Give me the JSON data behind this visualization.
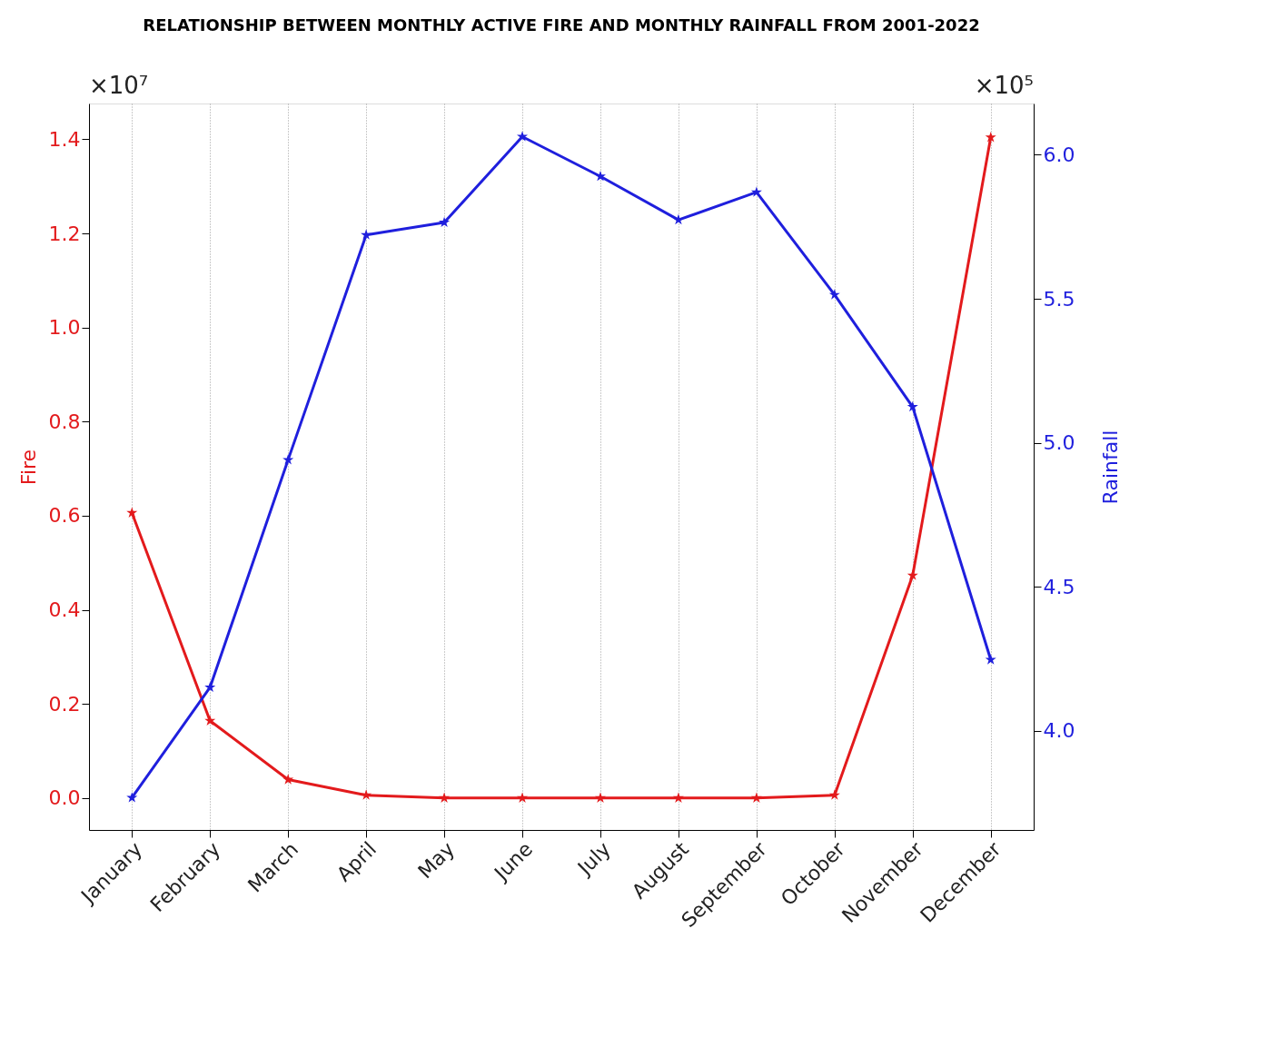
{
  "chart_data": {
    "type": "line",
    "title": "RELATIONSHIP BETWEEN MONTHLY ACTIVE FIRE AND MONTHLY RAINFALL FROM 2001-2022",
    "categories": [
      "January",
      "February",
      "March",
      "April",
      "May",
      "June",
      "July",
      "August",
      "September",
      "October",
      "November",
      "December"
    ],
    "series": [
      {
        "color": "#e31a1c",
        "values": [
          0.606,
          0.164,
          0.039,
          0.006,
          0.0,
          0.0,
          0.0,
          0.0,
          0.0,
          0.006,
          0.473,
          1.404
        ]
      },
      {
        "color": "#1f1fdd",
        "axis": "y2",
        "values": [
          3.768,
          4.151,
          4.941,
          5.722,
          5.765,
          6.063,
          5.925,
          5.774,
          5.87,
          5.514,
          5.125,
          4.247
        ]
      }
    ],
    "ylabel": "Fire",
    "y2label": "Rainfall",
    "ylim": [
      -0.068,
      1.476
    ],
    "yticks": [
      {
        "value": 0,
        "label": "0.0"
      },
      {
        "value": 0.2,
        "label": "0.2"
      },
      {
        "value": 0.4,
        "label": "0.4"
      },
      {
        "value": 0.6,
        "label": "0.6"
      },
      {
        "value": 0.8,
        "label": "0.8"
      },
      {
        "value": 1.0,
        "label": "1.0"
      },
      {
        "value": 1.2,
        "label": "1.2"
      },
      {
        "value": 1.4,
        "label": "1.4"
      }
    ],
    "y2lim": [
      3.656,
      6.178
    ],
    "y2ticks": [
      {
        "value": 4,
        "label": "4.0"
      },
      {
        "value": 4.5,
        "label": "4.5"
      },
      {
        "value": 5,
        "label": "5.0"
      },
      {
        "value": 5.5,
        "label": "5.5"
      },
      {
        "value": 6,
        "label": "6.0"
      }
    ],
    "annotations": [
      "×10⁷",
      "×10⁵"
    ],
    "grid": "x",
    "legend": false,
    "marker": "star",
    "line_style": "solid"
  }
}
